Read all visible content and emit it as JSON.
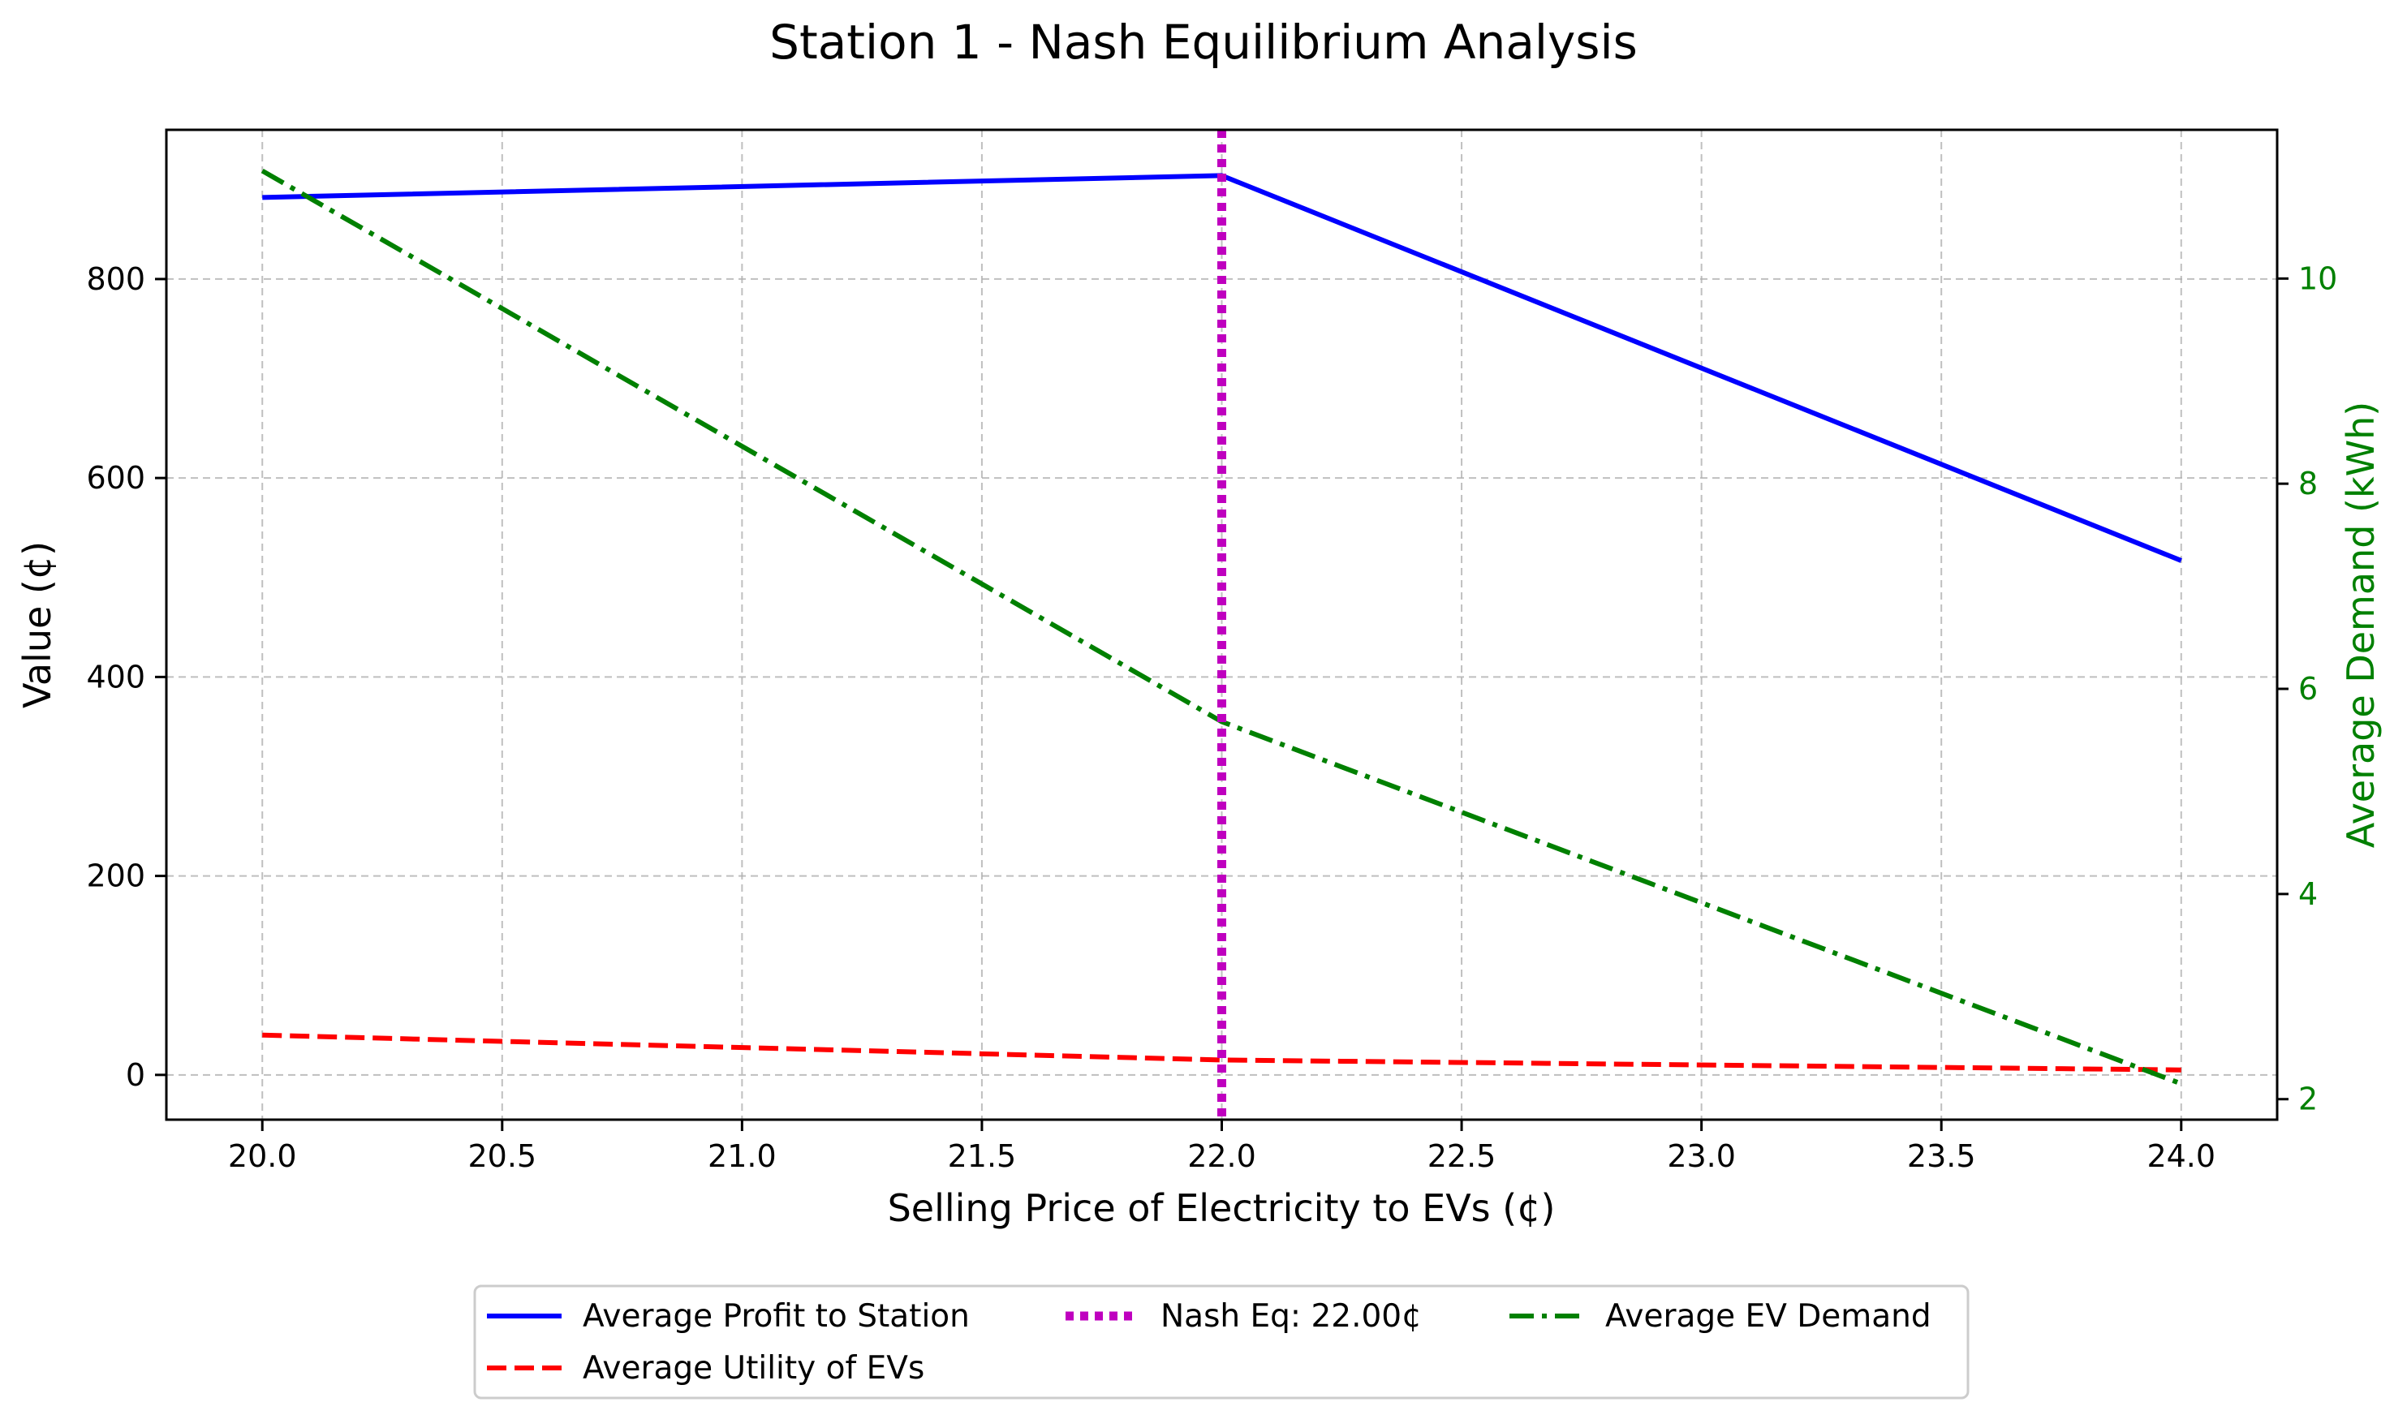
{
  "chart_data": {
    "type": "line",
    "title": "Station 1 - Nash Equilibrium Analysis",
    "xlabel": "Selling Price of Electricity to EVs (¢)",
    "ylabel": "Value (¢)",
    "y2label": "Average Demand (kWh)",
    "xlim": [
      19.8,
      24.2
    ],
    "ylim": [
      -45,
      950
    ],
    "y2lim": [
      1.8,
      11.45
    ],
    "xticks": [
      "20.0",
      "20.5",
      "21.0",
      "21.5",
      "22.0",
      "22.5",
      "23.0",
      "23.5",
      "24.0"
    ],
    "yticks": [
      "0",
      "200",
      "400",
      "600",
      "800"
    ],
    "y2ticks": [
      "2",
      "4",
      "6",
      "8",
      "10"
    ],
    "grid": true,
    "legend_position": "bottom-center, below plot",
    "colors": {
      "profit": "#0000ff",
      "utility": "#ff0000",
      "nash": "#bf00bf",
      "demand": "#008000",
      "grid": "#b0b0b0"
    },
    "series": [
      {
        "name": "Average Profit to Station",
        "axis": "left",
        "style": "solid",
        "x": [
          20,
          22,
          24
        ],
        "values": [
          882,
          904,
          517
        ]
      },
      {
        "name": "Average Utility of EVs",
        "axis": "left",
        "style": "dashed",
        "x": [
          20,
          22,
          24
        ],
        "values": [
          40,
          15,
          5
        ]
      },
      {
        "name": "Average EV Demand",
        "axis": "right",
        "style": "dashdot",
        "x": [
          20,
          22,
          24
        ],
        "values": [
          11.05,
          5.68,
          2.15
        ]
      }
    ],
    "vline": {
      "name": "Nash Eq: 22.00¢",
      "x": 22.0,
      "style": "dotted"
    },
    "legend": {
      "profit": "Average Profit to Station",
      "utility": "Average Utility of EVs",
      "nash": "Nash Eq: 22.00¢",
      "demand": "Average EV Demand"
    }
  }
}
